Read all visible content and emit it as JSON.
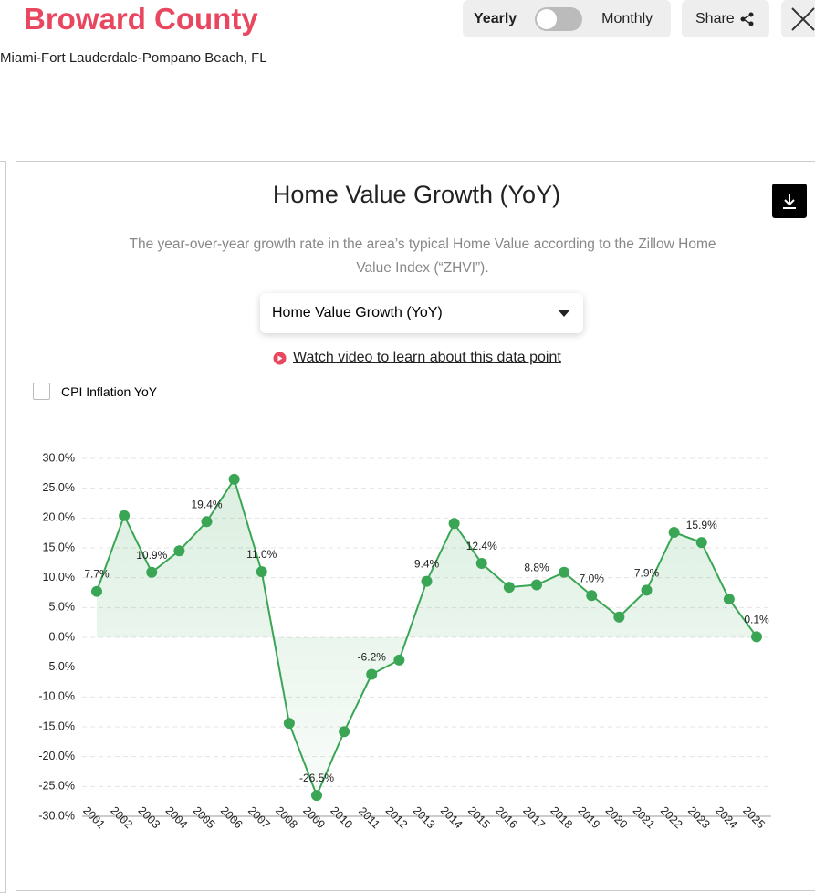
{
  "header": {
    "title": "Broward County",
    "subtitle": "Miami-Fort Lauderdale-Pompano Beach, FL"
  },
  "controls": {
    "toggle_left": "Yearly",
    "toggle_right": "Monthly",
    "share": "Share",
    "dropdown": "Home Value Growth (YoY)",
    "video_link": "Watch video to learn about this data point",
    "checkbox": "CPI Inflation YoY"
  },
  "chart_data": {
    "type": "line",
    "title": "Home Value Growth (YoY)",
    "subtitle": "The year-over-year growth rate in the area’s typical Home Value according to the Zillow Home Value Index (“ZHVI”).",
    "categories": [
      "2001",
      "2002",
      "2003",
      "2004",
      "2005",
      "2006",
      "2007",
      "2008",
      "2009",
      "2010",
      "2011",
      "2012",
      "2013",
      "2014",
      "2015",
      "2016",
      "2017",
      "2018",
      "2019",
      "2020",
      "2021",
      "2022",
      "2023",
      "2024",
      "2025"
    ],
    "values": [
      7.7,
      20.4,
      10.9,
      14.5,
      19.4,
      26.5,
      11.0,
      -14.4,
      -26.5,
      -15.8,
      -6.2,
      -3.8,
      9.4,
      19.1,
      12.4,
      8.4,
      8.8,
      10.9,
      7.0,
      3.4,
      7.9,
      17.6,
      15.9,
      6.4,
      0.1
    ],
    "value_labels": [
      "7.7%",
      null,
      "10.9%",
      null,
      "19.4%",
      null,
      "11.0%",
      null,
      "-26.5%",
      null,
      "-6.2%",
      null,
      "9.4%",
      null,
      "12.4%",
      null,
      "8.8%",
      null,
      "7.0%",
      null,
      "7.9%",
      null,
      "15.9%",
      null,
      "0.1%"
    ],
    "color": "#3aa655",
    "ylim": [
      -30,
      30
    ],
    "yticks": [
      {
        "value": -30,
        "label": "-30.0%"
      },
      {
        "value": -25,
        "label": "-25.0%"
      },
      {
        "value": -20,
        "label": "-20.0%"
      },
      {
        "value": -15,
        "label": "-15.0%"
      },
      {
        "value": -10,
        "label": "-10.0%"
      },
      {
        "value": -5,
        "label": "-5.0%"
      },
      {
        "value": 0,
        "label": "0.0%"
      },
      {
        "value": 5,
        "label": "5.0%"
      },
      {
        "value": 10,
        "label": "10.0%"
      },
      {
        "value": 15,
        "label": "15.0%"
      },
      {
        "value": 20,
        "label": "20.0%"
      },
      {
        "value": 25,
        "label": "25.0%"
      },
      {
        "value": 30,
        "label": "30.0%"
      }
    ],
    "grid": true
  }
}
